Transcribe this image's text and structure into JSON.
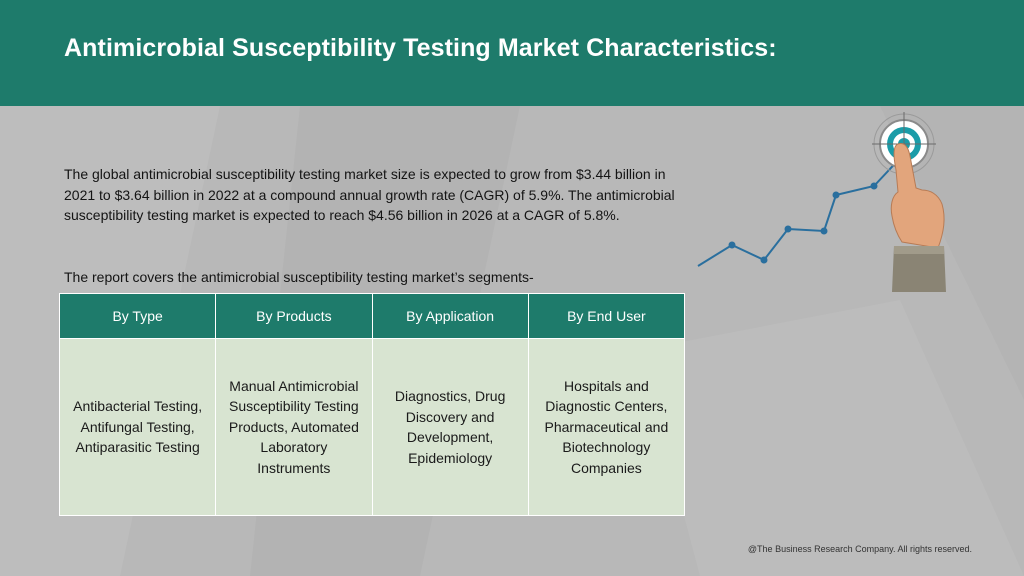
{
  "header": {
    "title": "Antimicrobial Susceptibility Testing Market Characteristics:"
  },
  "body": {
    "paragraph": "The global antimicrobial susceptibility testing market size is expected to grow from $3.44 billion in 2021 to $3.64 billion in 2022 at a compound annual growth rate (CAGR) of 5.9%. The antimicrobial susceptibility testing market is expected to reach $4.56 billion in 2026 at a CAGR of 5.8%.",
    "segments_intro": "The report covers the antimicrobial susceptibility testing market’s segments-"
  },
  "table": {
    "columns": [
      {
        "header": "By Type",
        "content": "Antibacterial Testing, Antifungal Testing, Antiparasitic Testing"
      },
      {
        "header": "By Products",
        "content": "Manual Antimicrobial Susceptibility Testing Products, Automated Laboratory Instruments"
      },
      {
        "header": "By Application",
        "content": "Diagnostics, Drug Discovery and Development, Epidemiology"
      },
      {
        "header": "By End User",
        "content": "Hospitals and Diagnostic Centers, Pharmaceutical and Biotechnology Companies"
      }
    ]
  },
  "footer": {
    "copyright": "@The Business Research Company. All rights reserved."
  },
  "colors": {
    "brand_teal": "#1e7b6b",
    "table_body": "#d8e4d1",
    "background": "#b8b8b8",
    "graph_line": "#2a6f9e"
  },
  "icons": {
    "illustration": "growth-chart-with-target-and-pointing-hand"
  }
}
